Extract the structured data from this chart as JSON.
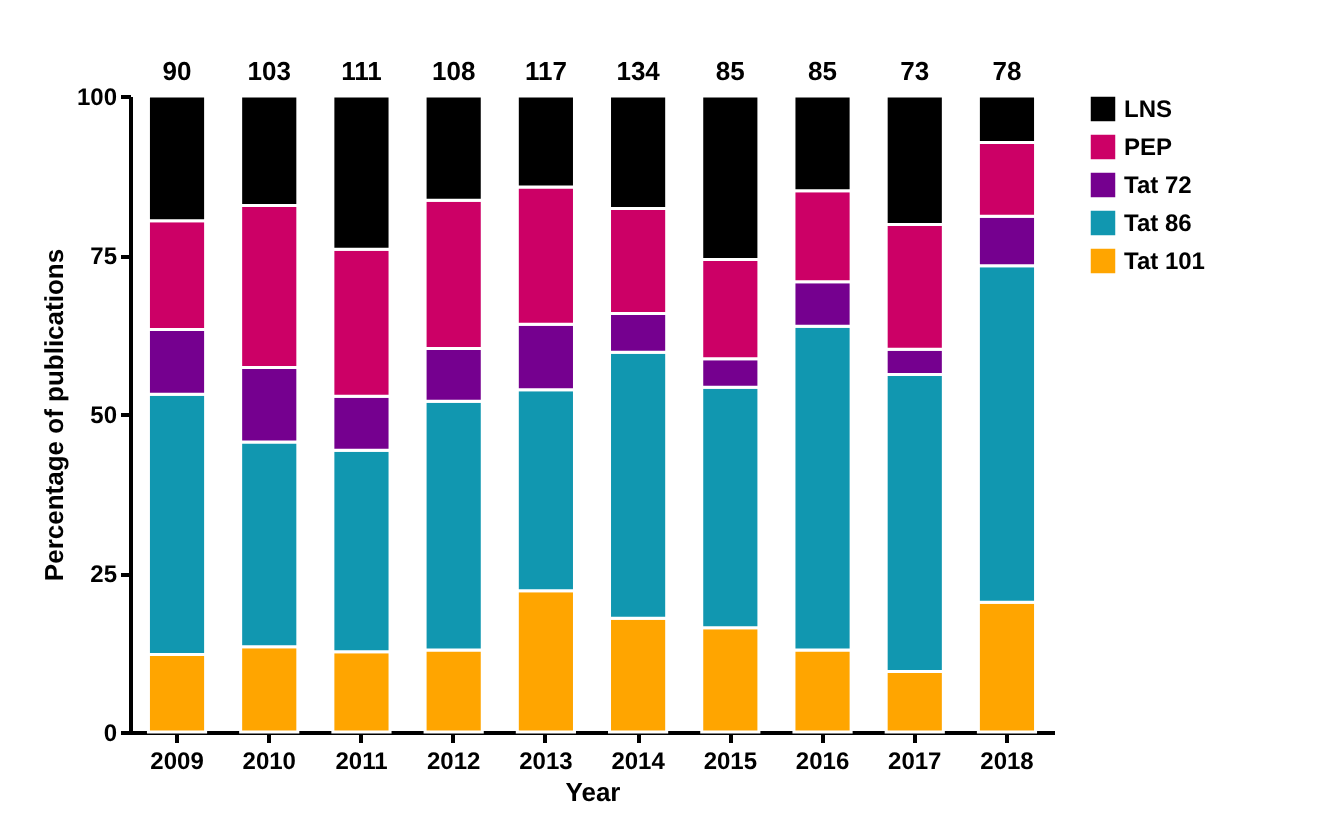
{
  "chart_data": {
    "type": "bar",
    "stacked": true,
    "xlabel": "Year",
    "ylabel": "Percentage of publications",
    "categories": [
      "2009",
      "2010",
      "2011",
      "2012",
      "2013",
      "2014",
      "2015",
      "2016",
      "2017",
      "2018"
    ],
    "series": [
      {
        "name": "Tat 101",
        "color": "#ffa500",
        "values": [
          12.2,
          13.4,
          12.6,
          12.9,
          22.2,
          17.9,
          16.4,
          12.9,
          9.5,
          20.4
        ]
      },
      {
        "name": "Tat 86",
        "color": "#1197b0",
        "values": [
          40.9,
          32.2,
          31.7,
          39.1,
          31.6,
          41.8,
          37.8,
          50.9,
          46.7,
          52.9
        ]
      },
      {
        "name": "Tat 72",
        "color": "#75008f",
        "values": [
          10.2,
          11.7,
          8.5,
          8.3,
          10.3,
          6.1,
          4.5,
          7.0,
          4.0,
          7.8
        ]
      },
      {
        "name": "PEP",
        "color": "#cc0066",
        "values": [
          17.1,
          25.5,
          23.1,
          23.3,
          21.6,
          16.5,
          15.6,
          14.3,
          19.6,
          11.6
        ]
      },
      {
        "name": "LNS",
        "color": "#000000",
        "values": [
          19.6,
          17.2,
          24.1,
          16.4,
          14.3,
          17.7,
          25.7,
          14.9,
          20.2,
          7.3
        ]
      }
    ],
    "annotations": [
      {
        "text": "90",
        "x": "2009",
        "y": 100
      },
      {
        "text": "103",
        "x": "2010",
        "y": 100
      },
      {
        "text": "111",
        "x": "2011",
        "y": 100
      },
      {
        "text": "108",
        "x": "2012",
        "y": 100
      },
      {
        "text": "117",
        "x": "2013",
        "y": 100
      },
      {
        "text": "134",
        "x": "2014",
        "y": 100
      },
      {
        "text": "85",
        "x": "2015",
        "y": 100
      },
      {
        "text": "85",
        "x": "2016",
        "y": 100
      },
      {
        "text": "73",
        "x": "2017",
        "y": 100
      },
      {
        "text": "78",
        "x": "2018",
        "y": 100
      }
    ],
    "ylim": [
      0,
      100
    ],
    "yticks": [
      0,
      25,
      50,
      75,
      100
    ],
    "grid": false,
    "legend": "right"
  }
}
